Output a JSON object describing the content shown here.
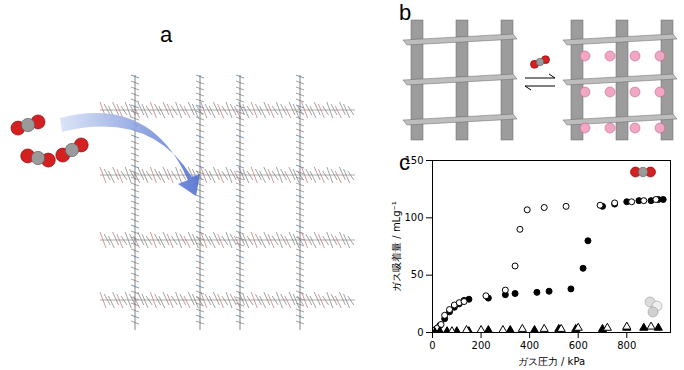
{
  "panel_labels": [
    "a",
    "b",
    "c"
  ],
  "chart_data": {
    "type": "scatter",
    "x_label": "ガス圧力 / kPa",
    "y_label": "ガス吸着量 / mLg⁻¹",
    "xlim": [
      0,
      980
    ],
    "ylim": [
      0,
      150
    ],
    "xticks": [
      0,
      200,
      400,
      600,
      800
    ],
    "yticks": [
      0,
      50,
      100,
      150
    ],
    "grid": false,
    "series": [
      {
        "color": "#000000",
        "marker": "filled_circle",
        "x": [
          5,
          15,
          30,
          50,
          70,
          90,
          110,
          130,
          150,
          230,
          300,
          340,
          430,
          480,
          570,
          620,
          640,
          700,
          750,
          800,
          850,
          900,
          930,
          950
        ],
        "values": [
          1,
          3,
          6,
          12,
          18,
          22,
          25,
          28,
          29,
          30,
          33,
          34,
          35,
          36,
          38,
          56,
          80,
          110,
          112,
          114,
          115,
          115,
          116,
          116
        ]
      },
      {
        "color": "#000000",
        "marker": "open_circle",
        "x": [
          10,
          20,
          35,
          50,
          70,
          90,
          110,
          130,
          220,
          300,
          340,
          360,
          390,
          460,
          550,
          690,
          750,
          820,
          870,
          920
        ],
        "values": [
          2,
          4,
          7,
          15,
          20,
          24,
          26,
          27,
          32,
          37,
          58,
          90,
          107,
          109,
          110,
          111,
          113,
          114,
          115,
          116
        ]
      },
      {
        "color": "#000000",
        "marker": "filled_triangle",
        "x": [
          10,
          30,
          60,
          100,
          150,
          230,
          320,
          420,
          520,
          590,
          700,
          800,
          870,
          930
        ],
        "values": [
          0,
          1,
          1,
          1,
          1,
          2,
          2,
          2,
          3,
          3,
          3,
          4,
          4,
          4
        ]
      },
      {
        "color": "#000000",
        "marker": "open_triangle",
        "x": [
          80,
          140,
          200,
          290,
          370,
          460,
          530,
          600,
          720,
          800,
          900
        ],
        "values": [
          1,
          2,
          2,
          2,
          3,
          3,
          3,
          4,
          4,
          5,
          5
        ]
      }
    ]
  }
}
